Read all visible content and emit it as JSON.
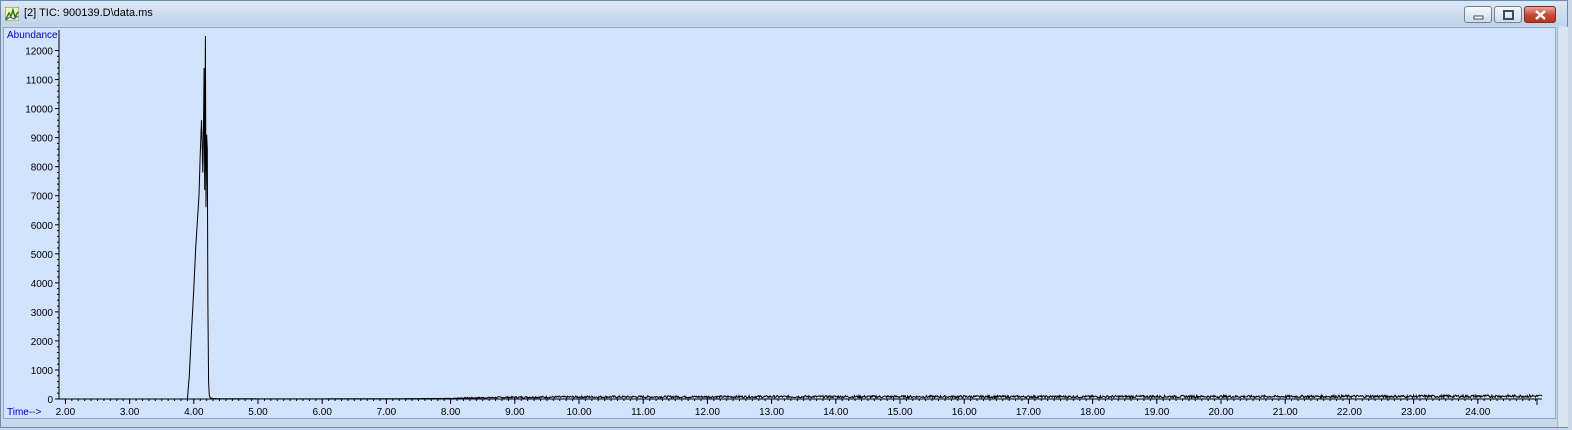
{
  "window": {
    "title": "[2] TIC: 900139.D\\data.ms",
    "icon": "chromatogram-app-icon",
    "controls": [
      "minimize-icon",
      "maximize-icon",
      "close-icon"
    ]
  },
  "chart_data": {
    "type": "line",
    "title": "",
    "xlabel": "Time-->",
    "ylabel": "Abundance",
    "xlim": [
      1.9,
      25.0
    ],
    "ylim": [
      0,
      12500
    ],
    "x_ticks": [
      "2.00",
      "3.00",
      "4.00",
      "5.00",
      "6.00",
      "7.00",
      "8.00",
      "9.00",
      "10.00",
      "11.00",
      "12.00",
      "13.00",
      "14.00",
      "15.00",
      "16.00",
      "17.00",
      "18.00",
      "19.00",
      "20.00",
      "21.00",
      "22.00",
      "23.00",
      "24.00"
    ],
    "y_ticks": [
      "0",
      "1000",
      "2000",
      "3000",
      "4000",
      "5000",
      "6000",
      "7000",
      "8000",
      "9000",
      "10000",
      "11000",
      "12000"
    ],
    "grid": false,
    "line_color": "#000000",
    "axis_label_color": "#0000cc",
    "series": [
      {
        "x": [
          1.9,
          3.9,
          3.93,
          3.96,
          4.0,
          4.03,
          4.06,
          4.08,
          4.1,
          4.12,
          4.13,
          4.14,
          4.15,
          4.16,
          4.17,
          4.18,
          4.19,
          4.2,
          4.21,
          4.22,
          4.23,
          4.24,
          4.25,
          4.27,
          4.3,
          4.4,
          4.6,
          5.0,
          6.0,
          7.0,
          7.5,
          8.0,
          8.2,
          8.5,
          9.0,
          10.0,
          11.0,
          12.0,
          13.0,
          14.0,
          15.0,
          16.0,
          17.0,
          18.0,
          19.0,
          20.0,
          21.0,
          22.0,
          23.0,
          24.0,
          25.0
        ],
        "y": [
          0,
          0,
          800,
          2200,
          3800,
          5200,
          6300,
          7000,
          8400,
          9600,
          8800,
          7800,
          9000,
          11400,
          7200,
          12500,
          6600,
          9100,
          8600,
          3200,
          600,
          150,
          60,
          30,
          15,
          10,
          8,
          5,
          5,
          8,
          15,
          20,
          35,
          45,
          60,
          70,
          75,
          75,
          80,
          80,
          80,
          80,
          80,
          80,
          85,
          85,
          85,
          90,
          90,
          95,
          100
        ]
      }
    ],
    "noise_amplitude": 40
  }
}
